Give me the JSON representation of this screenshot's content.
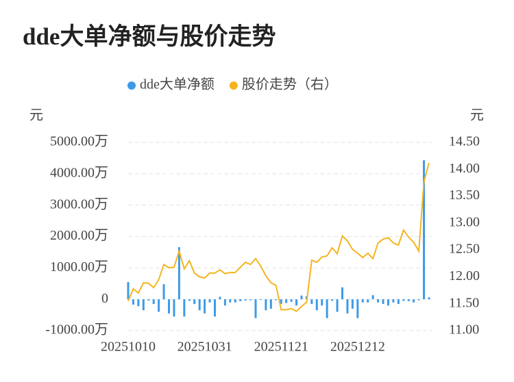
{
  "chart_data": {
    "type": "bar_line",
    "title": "dde大单净额与股价走势",
    "y_unit": "元",
    "y2_unit": "元",
    "categories": [
      "20251010",
      null,
      null,
      null,
      null,
      null,
      null,
      null,
      null,
      null,
      null,
      null,
      null,
      null,
      null,
      "20251031",
      null,
      null,
      null,
      null,
      null,
      null,
      null,
      null,
      null,
      null,
      null,
      null,
      null,
      null,
      "20251121",
      null,
      null,
      null,
      null,
      null,
      null,
      null,
      null,
      null,
      null,
      null,
      null,
      null,
      null,
      "20251212",
      null,
      null,
      null,
      null,
      null,
      null,
      null,
      null,
      null,
      null,
      null,
      null,
      null,
      null
    ],
    "series": [
      {
        "name": "dde大单净额",
        "type": "bar",
        "color": "#3d9ae8",
        "axis": "y",
        "values": [
          550,
          -170,
          -220,
          -350,
          -40,
          -150,
          -400,
          480,
          -450,
          -550,
          1660,
          -550,
          -50,
          -150,
          -350,
          -450,
          -100,
          -550,
          80,
          -200,
          -100,
          -100,
          -60,
          -40,
          -30,
          -600,
          -20,
          -350,
          -300,
          -30,
          -150,
          -120,
          -80,
          -200,
          120,
          100,
          -150,
          -350,
          -200,
          -600,
          -50,
          -400,
          380,
          -450,
          -300,
          -600,
          -100,
          -100,
          130,
          -100,
          -150,
          -200,
          -100,
          -150,
          -50,
          -60,
          -100,
          -30,
          4430,
          60
        ]
      },
      {
        "name": "股价走势（右）",
        "type": "line",
        "color": "#f5b41e",
        "axis": "y2",
        "values": [
          11.55,
          11.78,
          11.7,
          11.89,
          11.88,
          11.8,
          11.95,
          12.23,
          12.17,
          12.18,
          12.48,
          12.15,
          12.3,
          12.07,
          12.0,
          11.98,
          12.07,
          12.07,
          12.13,
          12.06,
          12.08,
          12.08,
          12.18,
          12.27,
          12.23,
          12.34,
          12.2,
          12.02,
          11.89,
          11.84,
          11.39,
          11.39,
          11.41,
          11.36,
          11.45,
          11.53,
          12.31,
          12.27,
          12.37,
          12.39,
          12.54,
          12.43,
          12.76,
          12.67,
          12.51,
          12.44,
          12.36,
          12.44,
          12.34,
          12.63,
          12.7,
          12.73,
          12.63,
          12.59,
          12.87,
          12.74,
          12.64,
          12.48,
          13.77,
          14.12
        ]
      }
    ],
    "ylim": [
      -1000,
      5000
    ],
    "yticks": [
      {
        "value": -1000,
        "label": "-1000.00万"
      },
      0,
      {
        "value": 1000,
        "label": "1000.00万"
      },
      {
        "value": 2000,
        "label": "2000.00万"
      },
      {
        "value": 3000,
        "label": "3000.00万"
      },
      {
        "value": 4000,
        "label": "4000.00万"
      },
      {
        "value": 5000,
        "label": "5000.00万"
      }
    ],
    "y2lim": [
      11,
      14.5
    ],
    "y2ticks": [
      {
        "value": 11,
        "label": "11.00"
      },
      {
        "value": 11.5,
        "label": "11.50"
      },
      {
        "value": 12,
        "label": "12.00"
      },
      {
        "value": 12.5,
        "label": "12.50"
      },
      {
        "value": 13,
        "label": "13.00"
      },
      {
        "value": 13.5,
        "label": "13.50"
      },
      {
        "value": 14,
        "label": "14.00"
      },
      {
        "value": 14.5,
        "label": "14.50"
      }
    ],
    "grid": true
  }
}
